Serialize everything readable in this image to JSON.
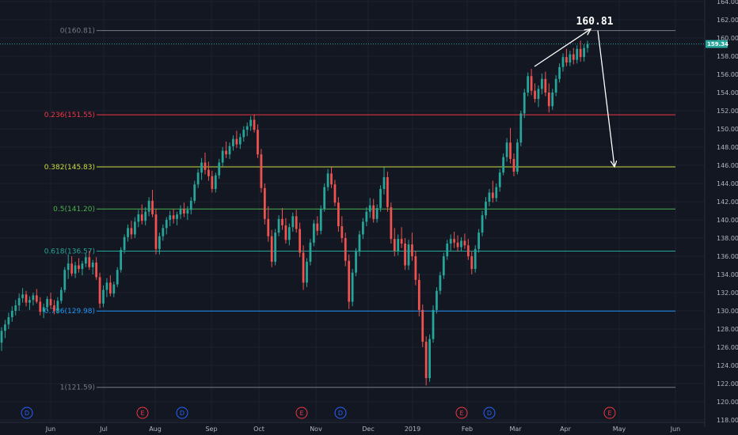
{
  "chart_data": {
    "type": "candlestick",
    "y_axis": {
      "range": [
        117,
        165
      ],
      "ticks": [
        "118.00",
        "120.00",
        "122.00",
        "124.00",
        "126.00",
        "128.00",
        "130.00",
        "132.00",
        "134.00",
        "136.00",
        "138.00",
        "140.00",
        "142.00",
        "144.00",
        "146.00",
        "148.00",
        "150.00",
        "152.00",
        "154.00",
        "156.00",
        "158.00",
        "160.00",
        "162.00",
        "164.00"
      ],
      "tick_values": [
        118,
        120,
        122,
        124,
        126,
        128,
        130,
        132,
        134,
        136,
        138,
        140,
        142,
        144,
        146,
        148,
        150,
        152,
        154,
        156,
        158,
        160,
        162,
        164
      ]
    },
    "x_axis": {
      "labels": [
        "Jun",
        "Jul",
        "Aug",
        "Sep",
        "Oct",
        "Nov",
        "Dec",
        "2019",
        "Feb",
        "Mar",
        "Apr",
        "May",
        "Jun"
      ]
    },
    "current_price": {
      "value": 159.34,
      "label": "159.34",
      "color": "#26a69a"
    },
    "fib_levels": [
      {
        "ratio": 0,
        "price": 160.81,
        "label": "0(160.81)",
        "color": "#787b86"
      },
      {
        "ratio": 0.236,
        "price": 151.55,
        "label": "0.236(151.55)",
        "color": "#f23645"
      },
      {
        "ratio": 0.382,
        "price": 145.83,
        "label": "0.382(145.83)",
        "color": "#cddc39"
      },
      {
        "ratio": 0.5,
        "price": 141.2,
        "label": "0.5(141.20)",
        "color": "#4caf50"
      },
      {
        "ratio": 0.618,
        "price": 136.57,
        "label": "0.618(136.57)",
        "color": "#26a69a"
      },
      {
        "ratio": 0.786,
        "price": 129.98,
        "label": "0.786(129.98)",
        "color": "#2196f3"
      },
      {
        "ratio": 1,
        "price": 121.59,
        "label": "1(121.59)",
        "color": "#787b86"
      }
    ],
    "annotation": {
      "text": "160.81",
      "peak": 160.81,
      "target": 145.83
    },
    "events": [
      "D",
      "E",
      "D",
      "E",
      "D",
      "E",
      "D",
      "E"
    ],
    "event_colors": {
      "D": "#2962ff",
      "E": "#f23645"
    },
    "colors": {
      "up": "#26a69a",
      "down": "#ef5350"
    },
    "candles": [
      [
        126.5,
        128.2,
        125.6,
        127.8
      ],
      [
        127.8,
        129.0,
        127.0,
        128.5
      ],
      [
        128.5,
        129.8,
        128.0,
        129.3
      ],
      [
        129.3,
        130.5,
        128.8,
        130.0
      ],
      [
        130.0,
        131.2,
        129.5,
        130.6
      ],
      [
        130.6,
        131.9,
        130.0,
        131.4
      ],
      [
        131.4,
        132.5,
        130.9,
        131.8
      ],
      [
        131.8,
        132.2,
        130.5,
        130.9
      ],
      [
        130.9,
        131.6,
        130.1,
        131.2
      ],
      [
        131.2,
        132.0,
        130.6,
        131.7
      ],
      [
        131.7,
        132.4,
        130.8,
        131.0
      ],
      [
        131.0,
        131.5,
        129.5,
        129.9
      ],
      [
        129.9,
        130.8,
        129.2,
        130.4
      ],
      [
        130.4,
        131.6,
        130.0,
        131.3
      ],
      [
        131.3,
        132.0,
        130.2,
        130.6
      ],
      [
        130.6,
        131.2,
        129.6,
        130.0
      ],
      [
        130.0,
        131.5,
        129.7,
        131.1
      ],
      [
        131.1,
        132.6,
        130.8,
        132.3
      ],
      [
        132.3,
        134.8,
        132.0,
        134.5
      ],
      [
        134.5,
        136.2,
        133.5,
        135.2
      ],
      [
        135.2,
        136.0,
        133.8,
        134.1
      ],
      [
        134.1,
        135.4,
        133.6,
        135.0
      ],
      [
        135.0,
        135.8,
        134.2,
        134.6
      ],
      [
        134.6,
        135.5,
        133.9,
        135.2
      ],
      [
        135.2,
        136.3,
        134.8,
        135.9
      ],
      [
        135.9,
        136.6,
        134.5,
        134.8
      ],
      [
        134.8,
        135.6,
        134.0,
        135.3
      ],
      [
        135.3,
        135.9,
        133.4,
        133.7
      ],
      [
        133.7,
        134.2,
        130.3,
        130.8
      ],
      [
        130.8,
        132.8,
        130.4,
        132.3
      ],
      [
        132.3,
        133.6,
        131.5,
        133.1
      ],
      [
        133.1,
        133.9,
        131.6,
        131.9
      ],
      [
        131.9,
        133.2,
        131.5,
        132.9
      ],
      [
        132.9,
        134.8,
        132.6,
        134.5
      ],
      [
        134.5,
        137.0,
        134.2,
        136.7
      ],
      [
        136.7,
        138.4,
        136.3,
        138.1
      ],
      [
        138.1,
        139.5,
        137.6,
        139.1
      ],
      [
        139.1,
        139.9,
        137.9,
        138.4
      ],
      [
        138.4,
        140.3,
        138.0,
        139.8
      ],
      [
        139.8,
        141.1,
        139.2,
        140.6
      ],
      [
        140.6,
        141.7,
        139.5,
        139.9
      ],
      [
        139.9,
        141.4,
        139.4,
        140.9
      ],
      [
        140.9,
        142.5,
        140.4,
        142.1
      ],
      [
        142.1,
        143.3,
        140.3,
        140.6
      ],
      [
        140.6,
        141.2,
        136.2,
        136.8
      ],
      [
        136.8,
        138.6,
        136.2,
        138.2
      ],
      [
        138.2,
        139.5,
        137.7,
        139.1
      ],
      [
        139.1,
        140.3,
        138.4,
        140.0
      ],
      [
        140.0,
        141.0,
        139.3,
        140.5
      ],
      [
        140.5,
        141.2,
        139.6,
        140.1
      ],
      [
        140.1,
        140.9,
        139.4,
        140.6
      ],
      [
        140.6,
        141.6,
        140.1,
        141.2
      ],
      [
        141.2,
        141.9,
        140.3,
        140.7
      ],
      [
        140.7,
        141.5,
        140.0,
        141.1
      ],
      [
        141.1,
        142.5,
        140.6,
        142.1
      ],
      [
        142.1,
        144.3,
        141.8,
        143.9
      ],
      [
        143.9,
        145.6,
        143.5,
        145.2
      ],
      [
        145.2,
        146.8,
        144.4,
        146.3
      ],
      [
        146.3,
        147.4,
        145.0,
        145.5
      ],
      [
        145.5,
        146.4,
        144.3,
        144.8
      ],
      [
        144.8,
        145.4,
        143.0,
        143.4
      ],
      [
        143.4,
        145.2,
        143.0,
        144.9
      ],
      [
        144.9,
        146.7,
        144.5,
        146.3
      ],
      [
        146.3,
        148.0,
        145.9,
        147.6
      ],
      [
        147.6,
        148.6,
        146.8,
        147.2
      ],
      [
        147.2,
        148.5,
        146.7,
        148.1
      ],
      [
        148.1,
        149.3,
        147.6,
        148.9
      ],
      [
        148.9,
        149.8,
        147.9,
        148.3
      ],
      [
        148.3,
        149.5,
        147.8,
        149.1
      ],
      [
        149.1,
        150.3,
        148.6,
        149.9
      ],
      [
        149.9,
        150.7,
        149.2,
        150.3
      ],
      [
        150.3,
        151.4,
        149.8,
        151.0
      ],
      [
        151.0,
        151.6,
        149.6,
        149.9
      ],
      [
        149.9,
        150.5,
        146.8,
        147.2
      ],
      [
        147.2,
        147.8,
        143.0,
        143.5
      ],
      [
        143.5,
        144.0,
        139.5,
        140.1
      ],
      [
        140.1,
        141.5,
        137.6,
        138.2
      ],
      [
        138.2,
        138.9,
        134.8,
        135.4
      ],
      [
        135.4,
        139.0,
        135.0,
        138.6
      ],
      [
        138.6,
        140.5,
        138.2,
        140.1
      ],
      [
        140.1,
        141.3,
        138.9,
        139.4
      ],
      [
        139.4,
        140.2,
        137.4,
        137.8
      ],
      [
        137.8,
        139.6,
        137.2,
        139.2
      ],
      [
        139.2,
        140.8,
        138.7,
        140.4
      ],
      [
        140.4,
        141.1,
        138.6,
        139.0
      ],
      [
        139.0,
        139.7,
        135.9,
        136.4
      ],
      [
        136.4,
        137.2,
        132.3,
        133.1
      ],
      [
        133.1,
        135.8,
        132.6,
        135.4
      ],
      [
        135.4,
        137.9,
        135.0,
        137.5
      ],
      [
        137.5,
        140.0,
        137.1,
        139.6
      ],
      [
        139.6,
        140.4,
        138.3,
        138.8
      ],
      [
        138.8,
        141.6,
        138.4,
        141.2
      ],
      [
        141.2,
        144.0,
        140.9,
        143.6
      ],
      [
        143.6,
        145.6,
        143.2,
        145.1
      ],
      [
        145.1,
        145.8,
        143.5,
        143.9
      ],
      [
        143.9,
        144.4,
        141.5,
        141.9
      ],
      [
        141.9,
        142.5,
        138.7,
        139.3
      ],
      [
        139.3,
        140.4,
        137.5,
        138.0
      ],
      [
        138.0,
        138.6,
        134.9,
        135.5
      ],
      [
        135.5,
        136.2,
        130.2,
        131.0
      ],
      [
        131.0,
        134.6,
        130.5,
        134.2
      ],
      [
        134.2,
        136.9,
        133.8,
        136.5
      ],
      [
        136.5,
        138.8,
        136.0,
        138.4
      ],
      [
        138.4,
        140.2,
        137.9,
        139.8
      ],
      [
        139.8,
        141.4,
        139.3,
        140.9
      ],
      [
        140.9,
        142.4,
        140.2,
        141.6
      ],
      [
        141.6,
        142.3,
        139.7,
        140.1
      ],
      [
        140.1,
        141.7,
        139.7,
        141.3
      ],
      [
        141.3,
        143.8,
        140.9,
        143.4
      ],
      [
        143.4,
        145.8,
        142.8,
        144.7
      ],
      [
        144.7,
        145.3,
        140.9,
        141.4
      ],
      [
        141.4,
        141.9,
        137.4,
        137.9
      ],
      [
        137.9,
        139.1,
        136.0,
        136.6
      ],
      [
        136.6,
        138.4,
        136.1,
        137.9
      ],
      [
        137.9,
        139.2,
        136.9,
        137.4
      ],
      [
        137.4,
        138.0,
        134.5,
        135.0
      ],
      [
        135.0,
        137.8,
        134.5,
        137.3
      ],
      [
        137.3,
        138.6,
        135.5,
        136.0
      ],
      [
        136.0,
        136.6,
        132.8,
        133.4
      ],
      [
        133.4,
        134.1,
        129.4,
        130.1
      ],
      [
        130.1,
        130.7,
        126.0,
        126.6
      ],
      [
        126.6,
        127.2,
        121.8,
        122.6
      ],
      [
        122.6,
        127.4,
        122.2,
        126.9
      ],
      [
        126.9,
        130.6,
        126.5,
        130.1
      ],
      [
        130.1,
        132.6,
        129.7,
        132.2
      ],
      [
        132.2,
        134.3,
        131.8,
        133.9
      ],
      [
        133.9,
        136.4,
        133.5,
        136.0
      ],
      [
        136.0,
        137.8,
        135.6,
        137.4
      ],
      [
        137.4,
        138.4,
        136.6,
        137.9
      ],
      [
        137.9,
        138.7,
        136.9,
        137.5
      ],
      [
        137.5,
        138.3,
        136.5,
        137.0
      ],
      [
        137.0,
        138.1,
        136.6,
        137.7
      ],
      [
        137.7,
        138.5,
        136.8,
        137.2
      ],
      [
        137.2,
        137.9,
        135.6,
        136.0
      ],
      [
        136.0,
        136.5,
        134.0,
        134.6
      ],
      [
        134.6,
        137.2,
        134.2,
        136.8
      ],
      [
        136.8,
        139.0,
        136.4,
        138.6
      ],
      [
        138.6,
        141.0,
        138.2,
        140.5
      ],
      [
        140.5,
        142.5,
        140.1,
        142.0
      ],
      [
        142.0,
        143.4,
        141.5,
        143.0
      ],
      [
        143.0,
        144.3,
        141.9,
        142.4
      ],
      [
        142.4,
        144.0,
        142.0,
        143.6
      ],
      [
        143.6,
        145.6,
        143.1,
        145.2
      ],
      [
        145.2,
        147.3,
        144.9,
        146.9
      ],
      [
        146.9,
        149.0,
        146.4,
        148.5
      ],
      [
        148.5,
        150.1,
        146.2,
        146.7
      ],
      [
        146.7,
        147.3,
        144.8,
        145.3
      ],
      [
        145.3,
        148.9,
        145.0,
        148.5
      ],
      [
        148.5,
        152.0,
        148.1,
        151.7
      ],
      [
        151.7,
        154.4,
        151.2,
        154.0
      ],
      [
        154.0,
        156.2,
        153.6,
        155.8
      ],
      [
        155.8,
        156.6,
        153.7,
        154.2
      ],
      [
        154.2,
        155.0,
        152.9,
        153.3
      ],
      [
        153.3,
        154.8,
        152.4,
        154.4
      ],
      [
        154.4,
        156.1,
        153.8,
        155.5
      ],
      [
        155.5,
        156.3,
        153.6,
        154.0
      ],
      [
        154.0,
        155.0,
        151.8,
        152.5
      ],
      [
        152.5,
        154.4,
        152.1,
        154.0
      ],
      [
        154.0,
        155.9,
        153.6,
        155.5
      ],
      [
        155.5,
        157.2,
        155.1,
        156.8
      ],
      [
        156.8,
        158.3,
        156.3,
        157.9
      ],
      [
        157.9,
        158.8,
        156.9,
        157.3
      ],
      [
        157.3,
        158.6,
        156.9,
        158.2
      ],
      [
        158.2,
        158.9,
        157.1,
        157.6
      ],
      [
        157.6,
        159.2,
        157.2,
        158.8
      ],
      [
        158.8,
        159.7,
        157.4,
        157.9
      ],
      [
        157.9,
        159.3,
        157.4,
        158.9
      ],
      [
        158.9,
        159.7,
        158.4,
        159.34
      ]
    ]
  }
}
